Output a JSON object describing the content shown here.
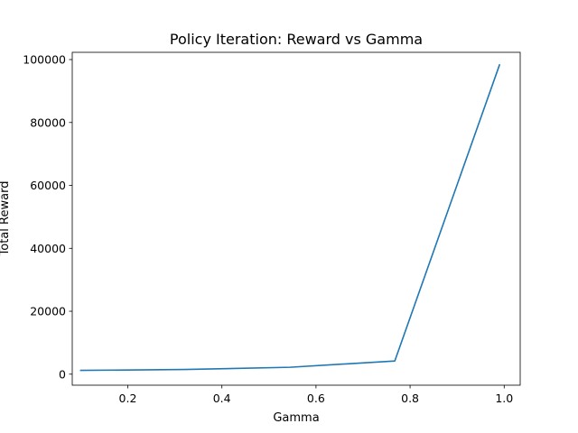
{
  "chart_data": {
    "type": "line",
    "title": "Policy Iteration: Reward vs Gamma",
    "xlabel": "Gamma",
    "ylabel": "Total Reward",
    "xlim": [
      0.082,
      1.034
    ],
    "ylim": [
      -3500,
      102300
    ],
    "xticks": [
      {
        "value": 0.2,
        "label": "0.2"
      },
      {
        "value": 0.4,
        "label": "0.4"
      },
      {
        "value": 0.6,
        "label": "0.6"
      },
      {
        "value": 0.8,
        "label": "0.8"
      },
      {
        "value": 1.0,
        "label": "1.0"
      }
    ],
    "yticks": [
      {
        "value": 0,
        "label": "0"
      },
      {
        "value": 20000,
        "label": "20000"
      },
      {
        "value": 40000,
        "label": "40000"
      },
      {
        "value": 60000,
        "label": "60000"
      },
      {
        "value": 80000,
        "label": "80000"
      },
      {
        "value": 100000,
        "label": "100000"
      }
    ],
    "grid": false,
    "series": [
      {
        "color": "#1f77b4",
        "x": [
          0.1,
          0.3225,
          0.545,
          0.7675,
          0.99
        ],
        "y": [
          1200,
          1500,
          2200,
          4200,
          98300
        ]
      }
    ]
  }
}
